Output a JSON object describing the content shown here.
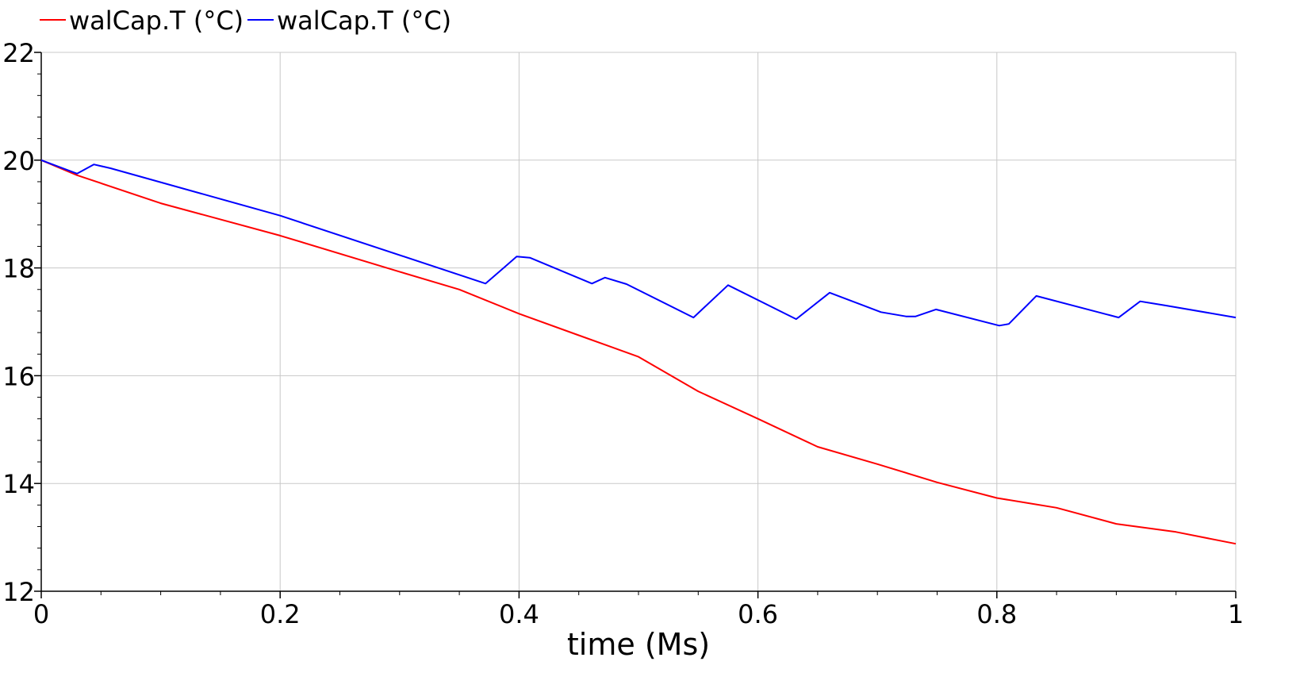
{
  "chart_data": {
    "type": "line",
    "title": "",
    "xlabel": "time (Ms)",
    "ylabel": "",
    "xlim": [
      0,
      1
    ],
    "ylim": [
      12,
      22
    ],
    "xticks": [
      0,
      0.2,
      0.4,
      0.6,
      0.8,
      1
    ],
    "xtick_labels": [
      "0",
      "0.2",
      "0.4",
      "0.6",
      "0.8",
      "1"
    ],
    "yticks": [
      12,
      14,
      16,
      18,
      20,
      22
    ],
    "ytick_labels": [
      "12",
      "14",
      "16",
      "18",
      "20",
      "22"
    ],
    "grid": true,
    "legend_position": "top-left",
    "series": [
      {
        "name": "walCap.T (°C)",
        "color": "#ff0000",
        "x": [
          0,
          0.03,
          0.1,
          0.2,
          0.3,
          0.35,
          0.4,
          0.45,
          0.5,
          0.55,
          0.6,
          0.65,
          0.7,
          0.75,
          0.8,
          0.85,
          0.9,
          0.95,
          1.0
        ],
        "y": [
          20.0,
          19.72,
          19.2,
          18.6,
          17.93,
          17.6,
          17.15,
          16.75,
          16.35,
          15.71,
          15.2,
          14.68,
          14.36,
          14.02,
          13.73,
          13.55,
          13.25,
          13.1,
          12.88
        ]
      },
      {
        "name": "walCap.T (°C)",
        "color": "#0000ff",
        "x": [
          0,
          0.03,
          0.044,
          0.058,
          0.2,
          0.372,
          0.398,
          0.409,
          0.461,
          0.472,
          0.49,
          0.546,
          0.575,
          0.632,
          0.66,
          0.703,
          0.724,
          0.732,
          0.749,
          0.802,
          0.81,
          0.833,
          0.902,
          0.92,
          0.942,
          1.0
        ],
        "y": [
          20.0,
          19.75,
          19.92,
          19.85,
          18.97,
          17.71,
          18.21,
          18.19,
          17.71,
          17.82,
          17.7,
          17.08,
          17.68,
          17.05,
          17.54,
          17.18,
          17.1,
          17.1,
          17.23,
          16.93,
          16.96,
          17.48,
          17.08,
          17.38,
          17.3,
          17.08
        ]
      }
    ]
  }
}
